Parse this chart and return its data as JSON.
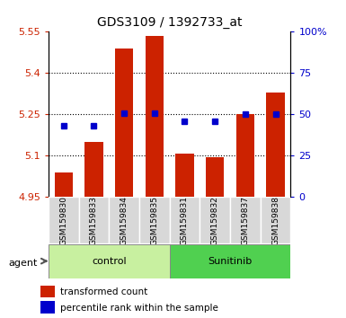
{
  "title": "GDS3109 / 1392733_at",
  "samples": [
    "GSM159830",
    "GSM159833",
    "GSM159834",
    "GSM159835",
    "GSM159831",
    "GSM159832",
    "GSM159837",
    "GSM159838"
  ],
  "bar_values": [
    5.04,
    5.15,
    5.49,
    5.535,
    5.107,
    5.095,
    5.25,
    5.33
  ],
  "percentile_values": [
    43,
    43,
    51,
    51,
    46,
    46,
    50,
    50
  ],
  "groups": [
    {
      "label": "control",
      "start": 0,
      "end": 4,
      "color": "#c8f0a0"
    },
    {
      "label": "Sunitinib",
      "start": 4,
      "end": 8,
      "color": "#50d050"
    }
  ],
  "ylim_left": [
    4.95,
    5.55
  ],
  "ylim_right": [
    0,
    100
  ],
  "yticks_left": [
    4.95,
    5.1,
    5.25,
    5.4,
    5.55
  ],
  "yticks_right": [
    0,
    25,
    50,
    75,
    100
  ],
  "ytick_labels_left": [
    "4.95",
    "5.1",
    "5.25",
    "5.4",
    "5.55"
  ],
  "ytick_labels_right": [
    "0",
    "25",
    "50",
    "75",
    "100%"
  ],
  "bar_color": "#cc2200",
  "dot_color": "#0000cc",
  "bar_width": 0.6,
  "agent_label": "agent",
  "legend_bar_label": "transformed count",
  "legend_dot_label": "percentile rank within the sample",
  "tick_label_area_color": "#d8d8d8",
  "control_color": "#c8f0a0",
  "sunitinib_color": "#50d050"
}
